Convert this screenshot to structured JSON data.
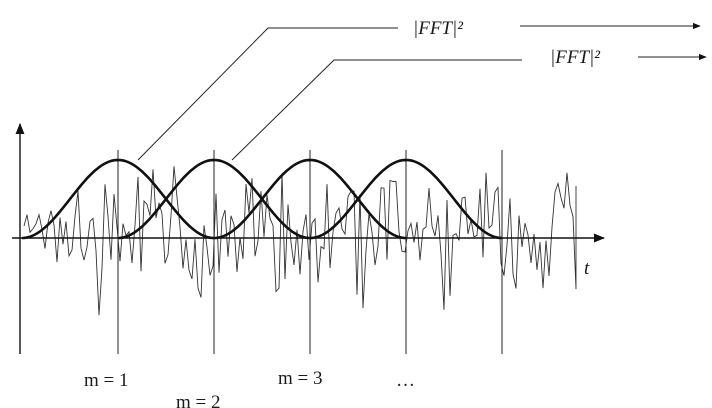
{
  "labels": {
    "fft_top": "|FFT|²",
    "fft_second": "|FFT|²",
    "axis_t": "t",
    "m1": "m = 1",
    "m2": "m = 2",
    "m3": "m = 3",
    "ellipsis": "…"
  },
  "colors": {
    "line": "#111111",
    "signal": "#333333",
    "background": "#ffffff"
  }
}
